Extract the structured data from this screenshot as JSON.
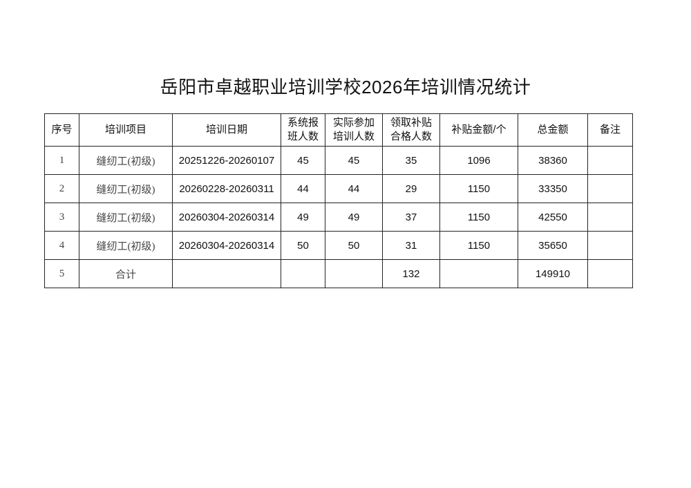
{
  "title": "岳阳市卓越职业培训学校2026年培训情况统计",
  "headers": [
    "序号",
    "培训项目",
    "培训日期",
    "系统报班人数",
    "实际参加培训人数",
    "领取补贴合格人数",
    "补贴金额/个",
    "总金额",
    "备注"
  ],
  "header_lines": [
    [
      "序号"
    ],
    [
      "培训项目"
    ],
    [
      "培训日期"
    ],
    [
      "系统报",
      "班人数"
    ],
    [
      "实际参加",
      "培训人数"
    ],
    [
      "领取补贴",
      "合格人数"
    ],
    [
      "补贴金额/个"
    ],
    [
      "总金额"
    ],
    [
      "备注"
    ]
  ],
  "rows": [
    [
      "1",
      "缝纫工(初级)",
      "20251226-20260107",
      "45",
      "45",
      "35",
      "1096",
      "38360",
      ""
    ],
    [
      "2",
      "缝纫工(初级)",
      "20260228-20260311",
      "44",
      "44",
      "29",
      "1150",
      "33350",
      ""
    ],
    [
      "3",
      "缝纫工(初级)",
      "20260304-20260314",
      "49",
      "49",
      "37",
      "1150",
      "42550",
      ""
    ],
    [
      "4",
      "缝纫工(初级)",
      "20260304-20260314",
      "50",
      "50",
      "31",
      "1150",
      "35650",
      ""
    ],
    [
      "5",
      "合计",
      "",
      "",
      "",
      "132",
      "",
      "149910",
      ""
    ]
  ]
}
